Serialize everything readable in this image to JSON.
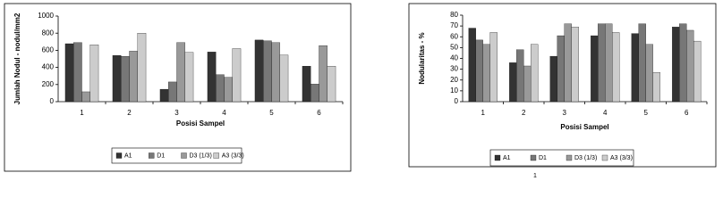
{
  "chart_data": [
    {
      "type": "bar",
      "y_label": "Jumlah Nodul - nodul/mm2",
      "x_label": "Posisi Sampel",
      "categories": [
        "1",
        "2",
        "3",
        "4",
        "5",
        "6"
      ],
      "series": [
        {
          "name": "A1",
          "color": "#333333",
          "values": [
            677,
            540,
            145,
            580,
            720,
            415
          ]
        },
        {
          "name": "D1",
          "color": "#777777",
          "values": [
            690,
            530,
            230,
            315,
            710,
            205
          ]
        },
        {
          "name": "D3 (1/3)",
          "color": "#999999",
          "values": [
            115,
            590,
            690,
            285,
            690,
            655
          ]
        },
        {
          "name": "A3 (3/3)",
          "color": "#cccccc",
          "values": [
            665,
            800,
            575,
            620,
            545,
            415
          ]
        }
      ],
      "ylim": [
        0,
        1000
      ],
      "yticks": [
        0,
        200,
        400,
        600,
        800,
        1000
      ],
      "grid": false,
      "legend": "bottom"
    },
    {
      "type": "bar",
      "y_label": "Nodularitas - %",
      "x_label": "Posisi Sampel",
      "categories": [
        "1",
        "2",
        "3",
        "4",
        "5",
        "6"
      ],
      "series": [
        {
          "name": "A1",
          "color": "#333333",
          "values": [
            68,
            36,
            42,
            61,
            63,
            69
          ]
        },
        {
          "name": "D1",
          "color": "#777777",
          "values": [
            57,
            48,
            61,
            72,
            72,
            72
          ]
        },
        {
          "name": "D3 (1/3)",
          "color": "#999999",
          "values": [
            53,
            33,
            72,
            72,
            53,
            66
          ]
        },
        {
          "name": "A3 (3/3)",
          "color": "#cccccc",
          "values": [
            64,
            53,
            69,
            64,
            27,
            56
          ]
        }
      ],
      "ylim": [
        0,
        80
      ],
      "yticks": [
        0,
        10,
        20,
        30,
        40,
        50,
        60,
        70,
        80
      ],
      "grid": false,
      "legend": "bottom"
    }
  ],
  "page_number": "1"
}
